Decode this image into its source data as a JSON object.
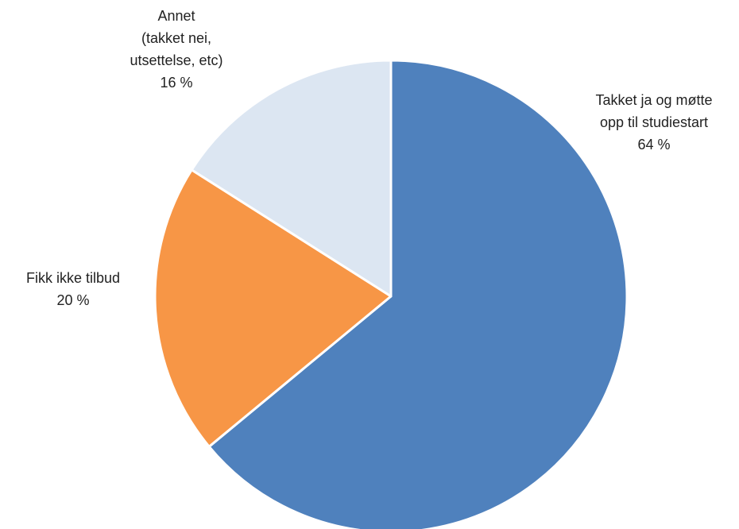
{
  "chart_data": {
    "type": "pie",
    "categories": [
      "Takket ja og møtte\nopp til studiestart",
      "Fikk ikke tilbud",
      "Annet\n(takket nei,\nutsettelse, etc)"
    ],
    "values": [
      64,
      20,
      16
    ],
    "value_labels": [
      "64 %",
      "20 %",
      "16 %"
    ],
    "colors": [
      "#4f81bd",
      "#f79646",
      "#dce6f2"
    ]
  }
}
